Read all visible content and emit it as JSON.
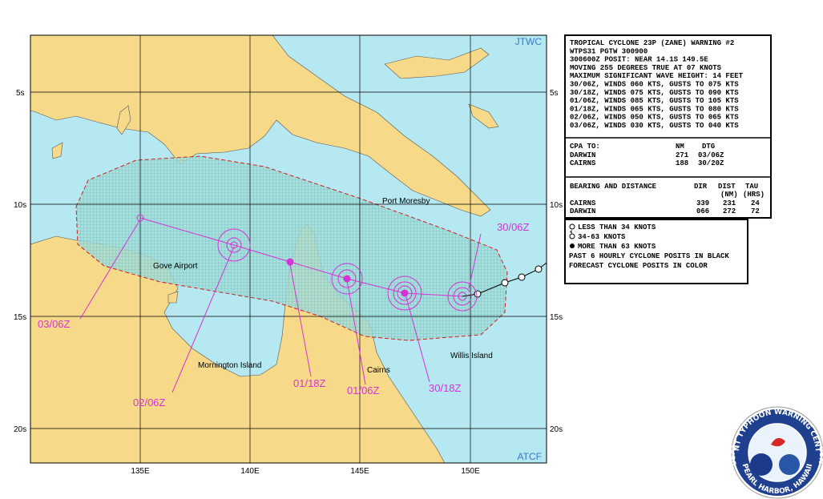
{
  "map": {
    "corner_top": "JTWC",
    "corner_bottom": "ATCF",
    "lat_labels": [
      "5s",
      "10s",
      "15s",
      "20s"
    ],
    "lon_labels": [
      "135E",
      "140E",
      "145E",
      "150E"
    ],
    "places": [
      "Port Moresby",
      "Gove Airport",
      "Mornington Island",
      "Cairns",
      "Willis Island"
    ],
    "track_labels": [
      "30/06Z",
      "30/18Z",
      "01/06Z",
      "01/18Z",
      "02/06Z",
      "03/06Z"
    ]
  },
  "warning": {
    "lines": [
      "TROPICAL CYCLONE 23P (ZANE) WARNING #2",
      "WTPS31 PGTW 300900",
      "300600Z POSIT: NEAR 14.1S 149.5E",
      "MOVING 255 DEGREES TRUE AT 07 KNOTS",
      "MAXIMUM SIGNIFICANT WAVE HEIGHT: 14 FEET",
      "30/06Z, WINDS 060 KTS, GUSTS TO 075 KTS",
      "30/18Z, WINDS 075 KTS, GUSTS TO 090 KTS",
      "01/06Z, WINDS 085 KTS, GUSTS TO 105 KTS",
      "01/18Z, WINDS 065 KTS, GUSTS TO 080 KTS",
      "02/06Z, WINDS 050 KTS, GUSTS TO 065 KTS",
      "03/06Z, WINDS 030 KTS, GUSTS TO 040 KTS"
    ],
    "cpa": {
      "header": [
        "CPA TO:",
        "NM",
        "DTG"
      ],
      "rows": [
        [
          "DARWIN",
          "271",
          "03/06Z"
        ],
        [
          "CAIRNS",
          "188",
          "30/20Z"
        ]
      ]
    },
    "bearing": {
      "header": [
        "BEARING AND DISTANCE",
        "DIR",
        "DIST",
        "TAU"
      ],
      "units": [
        "(NM)",
        "(HRS)"
      ],
      "rows": [
        [
          "CAIRNS",
          "339",
          "231",
          "24"
        ],
        [
          "DARWIN",
          "066",
          "272",
          "72"
        ]
      ]
    }
  },
  "legend": {
    "items": [
      "LESS THAN 34 KNOTS",
      "34-63 KNOTS",
      "MORE THAN 63 KNOTS"
    ],
    "notes": [
      "PAST 6 HOURLY CYCLONE POSITS IN BLACK",
      "FORECAST CYCLONE POSITS IN COLOR"
    ]
  },
  "seal": {
    "left": "USAF",
    "top": "JOINT TYPHOON WARNING CENTER",
    "right": "USN",
    "bottom": "PEARL HARBOR, HAWAII"
  }
}
